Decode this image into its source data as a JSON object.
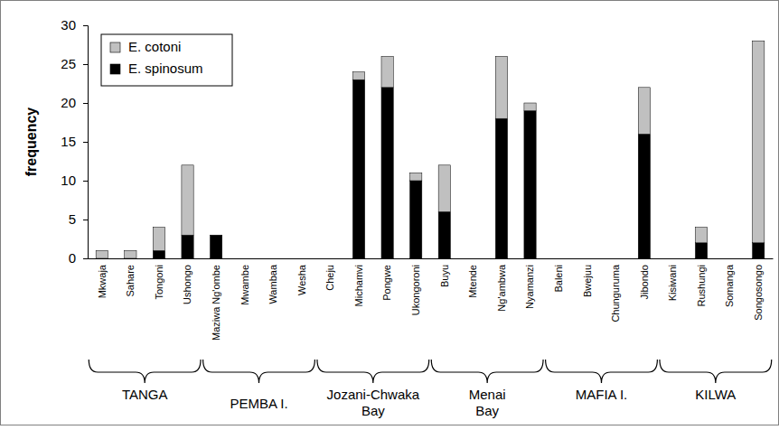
{
  "chart_data": {
    "type": "bar",
    "stacked": true,
    "legend": "upper left",
    "y_label": "frequency",
    "categories": [
      "Mkwaja",
      "Sahare",
      "Tongoni",
      "Ushongo",
      "Maziwa Ng'ombe",
      "Mwambe",
      "Wambaa",
      "Wesha",
      "Cheju",
      "Michamvi",
      "Pongwe",
      "Ukongoroni",
      "Buyu",
      "Mtende",
      "Ng'ambwa",
      "Nyamanzi",
      "Baleni",
      "Bwejuu",
      "Chunguruma",
      "Jibondo",
      "Kisiwani",
      "Rushungi",
      "Somanga",
      "Songosongo"
    ],
    "series": [
      {
        "name": "E. spinosum",
        "color": "#000000",
        "values": [
          0,
          0,
          1,
          3,
          3,
          0,
          0,
          0,
          0,
          23,
          22,
          10,
          6,
          0,
          18,
          19,
          0,
          0,
          0,
          16,
          0,
          2,
          0,
          2
        ]
      },
      {
        "name": "E. cotoni",
        "color": "#c0c0c0",
        "values": [
          1,
          1,
          3,
          9,
          0,
          0,
          0,
          0,
          0,
          1,
          4,
          1,
          6,
          0,
          8,
          1,
          0,
          0,
          0,
          6,
          0,
          2,
          0,
          26
        ]
      }
    ],
    "groups": [
      {
        "name": [
          "TANGA"
        ],
        "count": 4
      },
      {
        "name": [
          "PEMBA I."
        ],
        "count": 4
      },
      {
        "name": [
          "Jozani-Chwaka",
          "Bay"
        ],
        "count": 4
      },
      {
        "name": [
          "Menai",
          "Bay"
        ],
        "count": 4
      },
      {
        "name": [
          "MAFIA I."
        ],
        "count": 4
      },
      {
        "name": [
          "KILWA"
        ],
        "count": 4
      }
    ],
    "ylim": [
      0,
      30
    ],
    "yticks": [
      0,
      5,
      10,
      15,
      20,
      25,
      30
    ]
  }
}
